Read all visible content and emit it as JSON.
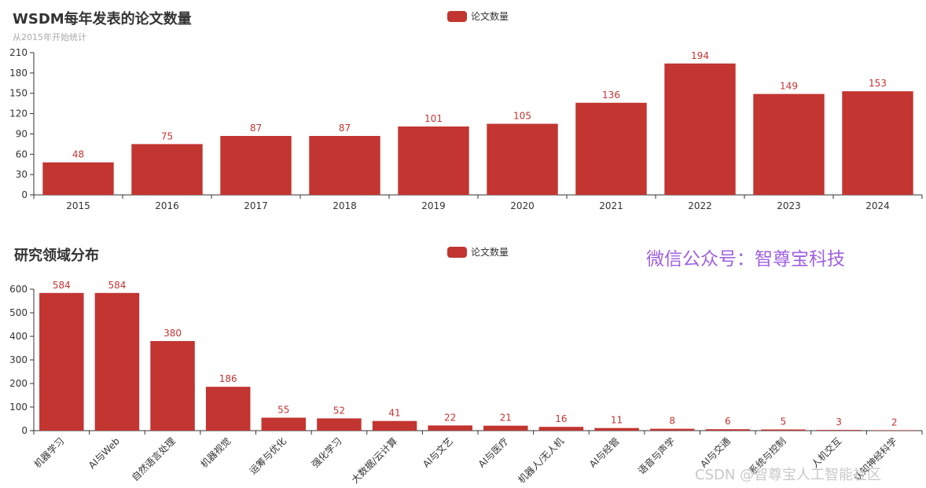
{
  "charts": {
    "top": {
      "title": "WSDM每年发表的论文数量",
      "subtitle": "从2015年开始统计",
      "legend": "论文数量"
    },
    "bottom": {
      "title": "研究领域分布",
      "legend": "论文数量"
    }
  },
  "watermark": "微信公众号：智尊宝科技",
  "credit": "CSDN @智尊宝人工智能社区",
  "colors": {
    "bar": "#c23531",
    "watermark": "#a060e0",
    "axis": "#333333"
  },
  "chart_data": [
    {
      "type": "bar",
      "title": "WSDM每年发表的论文数量",
      "subtitle": "从2015年开始统计",
      "categories": [
        "2015",
        "2016",
        "2017",
        "2018",
        "2019",
        "2020",
        "2021",
        "2022",
        "2023",
        "2024"
      ],
      "series": [
        {
          "name": "论文数量",
          "values": [
            48,
            75,
            87,
            87,
            101,
            105,
            136,
            194,
            149,
            153
          ]
        }
      ],
      "ylim": [
        0,
        210
      ],
      "yticks": [
        0,
        30,
        60,
        90,
        120,
        150,
        180,
        210
      ],
      "grid": false,
      "legend": "top-center"
    },
    {
      "type": "bar",
      "title": "研究领域分布",
      "categories": [
        "机器学习",
        "AI与Web",
        "自然语言处理",
        "机器视觉",
        "运筹与优化",
        "强化学习",
        "大数据/云计算",
        "AI与文艺",
        "AI与医疗",
        "机器人/无人机",
        "AI与经管",
        "语音与声学",
        "AI与交通",
        "系统与控制",
        "人机交互",
        "认知神经科学"
      ],
      "series": [
        {
          "name": "论文数量",
          "values": [
            584,
            584,
            380,
            186,
            55,
            52,
            41,
            22,
            21,
            16,
            11,
            8,
            6,
            5,
            3,
            2
          ]
        }
      ],
      "ylim": [
        0,
        600
      ],
      "yticks": [
        0,
        100,
        200,
        300,
        400,
        500,
        600
      ],
      "grid": false,
      "legend": "top-center",
      "xlabel_rotation": 45
    }
  ]
}
